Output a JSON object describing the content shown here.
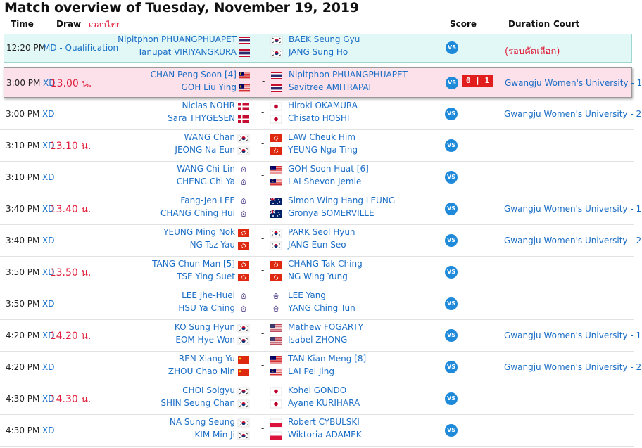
{
  "title": "Match overview of Tuesday, November 19, 2019",
  "headers": {
    "time": "Time",
    "draw": "Draw",
    "thai_note": "เวลาไทย",
    "score": "Score",
    "duration": "Duration",
    "court": "Court"
  },
  "vs_label": "VS",
  "matches": [
    {
      "time": "12:20 PM",
      "draw": "MD - Qualification",
      "thai_time": "",
      "left": [
        "Nipitphon PHUANGPHUAPET",
        "Tanupat VIRIYANGKURA"
      ],
      "left_flags": [
        "th",
        "th"
      ],
      "right": [
        "BAEK Seung Gyu",
        "JANG Sung Ho"
      ],
      "right_flags": [
        "kr",
        "kr"
      ],
      "score": "",
      "court": "(รอบคัดเลือก)"
    },
    {
      "time": "3:00 PM",
      "draw": "XD",
      "thai_time": "13.00 น.",
      "left": [
        "CHAN Peng Soon [4]",
        "GOH Liu Ying"
      ],
      "left_flags": [
        "my",
        "my"
      ],
      "right": [
        "Nipitphon PHUANGPHUAPET",
        "Savitree AMITRAPAI"
      ],
      "right_flags": [
        "th",
        "th"
      ],
      "score": "0 | 1",
      "court": "Gwangju Women's University - 1"
    },
    {
      "time": "3:00 PM",
      "draw": "XD",
      "thai_time": "",
      "left": [
        "Niclas NOHR",
        "Sara THYGESEN"
      ],
      "left_flags": [
        "dk",
        "dk"
      ],
      "right": [
        "Hiroki OKAMURA",
        "Chisato HOSHI"
      ],
      "right_flags": [
        "jp",
        "jp"
      ],
      "score": "",
      "court": "Gwangju Women's University - 2"
    },
    {
      "time": "3:10 PM",
      "draw": "XD",
      "thai_time": "13.10 น.",
      "left": [
        "WANG Chan",
        "JEONG Na Eun"
      ],
      "left_flags": [
        "kr",
        "kr"
      ],
      "right": [
        "LAW Cheuk Him",
        "YEUNG Nga Ting"
      ],
      "right_flags": [
        "hk",
        "hk"
      ],
      "score": "",
      "court": ""
    },
    {
      "time": "3:10 PM",
      "draw": "XD",
      "thai_time": "",
      "left": [
        "WANG Chi-Lin",
        "CHENG Chi Ya"
      ],
      "left_flags": [
        "tpe",
        "tpe"
      ],
      "right": [
        "GOH Soon Huat [6]",
        "LAI Shevon Jemie"
      ],
      "right_flags": [
        "my",
        "my"
      ],
      "score": "",
      "court": ""
    },
    {
      "time": "3:40 PM",
      "draw": "XD",
      "thai_time": "13.40 น.",
      "left": [
        "Fang-Jen LEE",
        "CHANG Ching Hui"
      ],
      "left_flags": [
        "tpe",
        "tpe"
      ],
      "right": [
        "Simon Wing Hang LEUNG",
        "Gronya SOMERVILLE"
      ],
      "right_flags": [
        "au",
        "au"
      ],
      "score": "",
      "court": "Gwangju Women's University - 1"
    },
    {
      "time": "3:40 PM",
      "draw": "XD",
      "thai_time": "",
      "left": [
        "YEUNG Ming Nok",
        "NG Tsz Yau"
      ],
      "left_flags": [
        "hk",
        "hk"
      ],
      "right": [
        "PARK Seol Hyun",
        "JANG Eun Seo"
      ],
      "right_flags": [
        "kr",
        "kr"
      ],
      "score": "",
      "court": "Gwangju Women's University - 2"
    },
    {
      "time": "3:50 PM",
      "draw": "XD",
      "thai_time": "13.50 น.",
      "left": [
        "TANG Chun Man [5]",
        "TSE Ying Suet"
      ],
      "left_flags": [
        "hk",
        "hk"
      ],
      "right": [
        "CHANG Tak Ching",
        "NG Wing Yung"
      ],
      "right_flags": [
        "hk",
        "hk"
      ],
      "score": "",
      "court": ""
    },
    {
      "time": "3:50 PM",
      "draw": "XD",
      "thai_time": "",
      "left": [
        "LEE Jhe-Huei",
        "HSU Ya Ching"
      ],
      "left_flags": [
        "tpe",
        "tpe"
      ],
      "right": [
        "LEE Yang",
        "YANG Ching Tun"
      ],
      "right_flags": [
        "tpe",
        "tpe"
      ],
      "score": "",
      "court": ""
    },
    {
      "time": "4:20 PM",
      "draw": "XD",
      "thai_time": "14.20 น.",
      "left": [
        "KO Sung Hyun",
        "EOM Hye Won"
      ],
      "left_flags": [
        "kr",
        "kr"
      ],
      "right": [
        "Mathew FOGARTY",
        "Isabel ZHONG"
      ],
      "right_flags": [
        "us",
        "us"
      ],
      "score": "",
      "court": "Gwangju Women's University - 1"
    },
    {
      "time": "4:20 PM",
      "draw": "XD",
      "thai_time": "",
      "left": [
        "REN Xiang Yu",
        "ZHOU Chao Min"
      ],
      "left_flags": [
        "cn",
        "cn"
      ],
      "right": [
        "TAN Kian Meng [8]",
        "LAI Pei Jing"
      ],
      "right_flags": [
        "my",
        "my"
      ],
      "score": "",
      "court": "Gwangju Women's University - 2"
    },
    {
      "time": "4:30 PM",
      "draw": "XD",
      "thai_time": "14.30 น.",
      "left": [
        "CHOI Solgyu",
        "SHIN Seung Chan"
      ],
      "left_flags": [
        "kr",
        "kr"
      ],
      "right": [
        "Kohei GONDO",
        "Ayane KURIHARA"
      ],
      "right_flags": [
        "jp",
        "jp"
      ],
      "score": "",
      "court": ""
    },
    {
      "time": "4:30 PM",
      "draw": "XD",
      "thai_time": "",
      "left": [
        "NA Sung Seung",
        "KIM Min Ji"
      ],
      "left_flags": [
        "kr",
        "kr"
      ],
      "right": [
        "Robert CYBULSKI",
        "Wiktoria ADAMEK"
      ],
      "right_flags": [
        "pl",
        "pl"
      ],
      "score": "",
      "court": ""
    }
  ]
}
